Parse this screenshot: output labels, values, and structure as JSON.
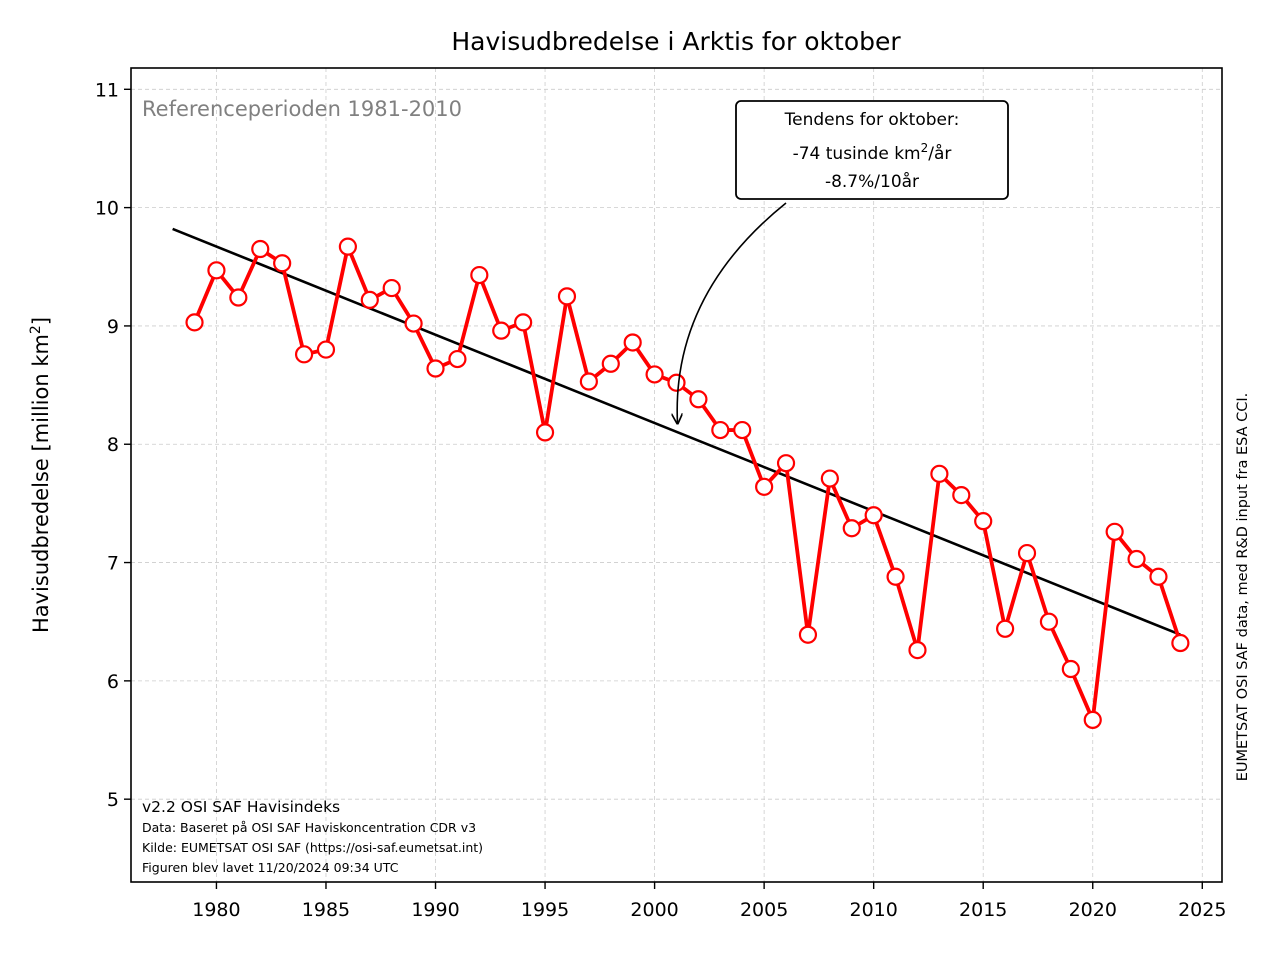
{
  "chart_data": {
    "type": "line",
    "title": "Havisudbredelse i Arktis for oktober",
    "ylabel_main": "Havisudbredelse [million km",
    "ylabel_sup": "2",
    "ylabel_end": "]",
    "xlabel": "",
    "xlim": [
      1976.1,
      2025.9
    ],
    "ylim": [
      4.3,
      11.18
    ],
    "xticks": [
      1980,
      1985,
      1990,
      1995,
      2000,
      2005,
      2010,
      2015,
      2020,
      2025
    ],
    "yticks": [
      5,
      6,
      7,
      8,
      9,
      10,
      11
    ],
    "grid": true,
    "series": [
      {
        "x": [
          1979,
          1980,
          1981,
          1982,
          1983,
          1984,
          1985,
          1986,
          1987,
          1988,
          1989,
          1990,
          1991,
          1992,
          1993,
          1994,
          1995,
          1996,
          1997,
          1998,
          1999,
          2000,
          2001,
          2002,
          2003,
          2004,
          2005,
          2006,
          2007,
          2008,
          2009,
          2010,
          2011,
          2012,
          2013,
          2014,
          2015,
          2016,
          2017,
          2018,
          2019,
          2020,
          2021,
          2022,
          2023,
          2024
        ],
        "values": [
          9.03,
          9.47,
          9.24,
          9.65,
          9.53,
          8.76,
          8.8,
          9.67,
          9.22,
          9.32,
          9.02,
          8.64,
          8.72,
          9.43,
          8.96,
          9.03,
          8.1,
          9.25,
          8.53,
          8.68,
          8.86,
          8.59,
          8.52,
          8.38,
          8.12,
          8.12,
          7.64,
          7.84,
          6.39,
          7.71,
          7.29,
          7.4,
          6.88,
          6.26,
          7.75,
          7.57,
          7.35,
          6.44,
          7.08,
          6.5,
          6.1,
          5.67,
          7.26,
          7.03,
          6.88,
          6.32
        ],
        "color": "#ff0000"
      }
    ],
    "trend": {
      "x": [
        1978,
        2024
      ],
      "y": [
        9.82,
        6.39
      ],
      "color": "#000000"
    },
    "reference_label": "Referenceperioden 1981-2010",
    "annotation": {
      "line1": "Tendens for oktober:",
      "line2_main": "-74 tusinde km",
      "line2_sup": "2",
      "line2_end": "/år",
      "line3": "-8.7%/10år",
      "arrow_target": [
        2001,
        8.15
      ]
    },
    "footer": {
      "line1": "v2.2 OSI SAF Havisindeks",
      "line2": "Data: Baseret på OSI SAF Haviskoncentration CDR v3",
      "line3": "Kilde: EUMETSAT OSI SAF (https://osi-saf.eumetsat.int)",
      "line4": "Figuren blev lavet 11/20/2024 09:34 UTC"
    },
    "side_label": "EUMETSAT OSI SAF data, med R&D input fra ESA CCI."
  }
}
